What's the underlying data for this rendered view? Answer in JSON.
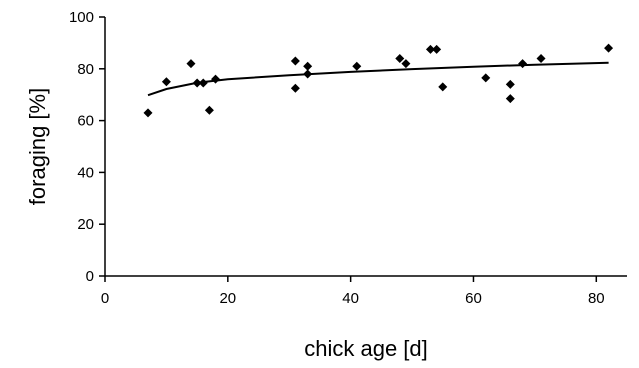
{
  "chart_data": {
    "type": "scatter",
    "title": "",
    "xlabel": "chick age [d]",
    "ylabel": "foraging [%]",
    "xlim": [
      0,
      85
    ],
    "ylim": [
      0,
      100
    ],
    "x_ticks": [
      0,
      20,
      40,
      60,
      80
    ],
    "y_ticks": [
      0,
      20,
      40,
      60,
      80,
      100
    ],
    "grid": false,
    "legend": "none",
    "marker_color": "#000000",
    "series": [
      {
        "points": [
          [
            7,
            63
          ],
          [
            10,
            75
          ],
          [
            14,
            82
          ],
          [
            15,
            74.5
          ],
          [
            16,
            74.5
          ],
          [
            17,
            64
          ],
          [
            18,
            76
          ],
          [
            31,
            83
          ],
          [
            31,
            72.5
          ],
          [
            33,
            81
          ],
          [
            33,
            78
          ],
          [
            41,
            81
          ],
          [
            48,
            84
          ],
          [
            49,
            82
          ],
          [
            53,
            87.5
          ],
          [
            54,
            87.5
          ],
          [
            55,
            73
          ],
          [
            62,
            76.5
          ],
          [
            66,
            74
          ],
          [
            66,
            68.5
          ],
          [
            68,
            82
          ],
          [
            71,
            84
          ],
          [
            82,
            88
          ]
        ]
      }
    ],
    "trend_line": {
      "x": [
        7,
        10,
        15,
        20,
        30,
        40,
        50,
        60,
        70,
        82
      ],
      "y": [
        69.8,
        72.2,
        74.6,
        76.0,
        77.5,
        78.8,
        79.9,
        80.8,
        81.6,
        82.3
      ]
    }
  }
}
